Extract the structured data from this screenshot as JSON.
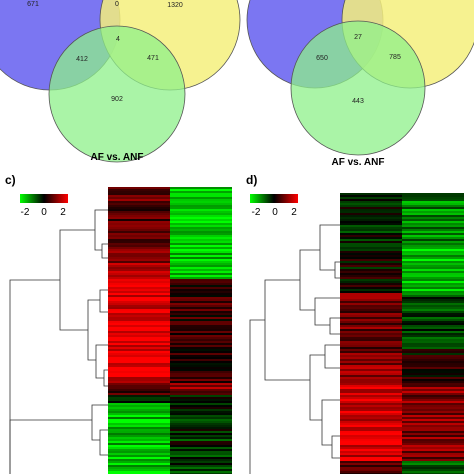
{
  "venn_left": {
    "caption": "AF vs. ANF",
    "regions": {
      "blue_only": "671",
      "blue_yellow": "0",
      "yellow_only": "1320",
      "blue_green": "412",
      "center": "4",
      "yellow_green": "471",
      "green_only": "902"
    }
  },
  "venn_right": {
    "caption": "AF vs. ANF",
    "regions": {
      "center": "27",
      "blue_green": "650",
      "yellow_green": "785",
      "green_only": "443"
    }
  },
  "heatmap_left": {
    "panel_label": "c)",
    "scale_ticks": [
      "-2",
      "0",
      "2"
    ]
  },
  "heatmap_right": {
    "panel_label": "d)",
    "scale_ticks": [
      "-2",
      "0",
      "2"
    ]
  },
  "colors": {
    "set_blue": "#7b76f2",
    "set_yellow": "#f4f07c",
    "set_green": "#8ef08a",
    "low": "#00ff00",
    "mid": "#000000",
    "high": "#ff0000"
  }
}
